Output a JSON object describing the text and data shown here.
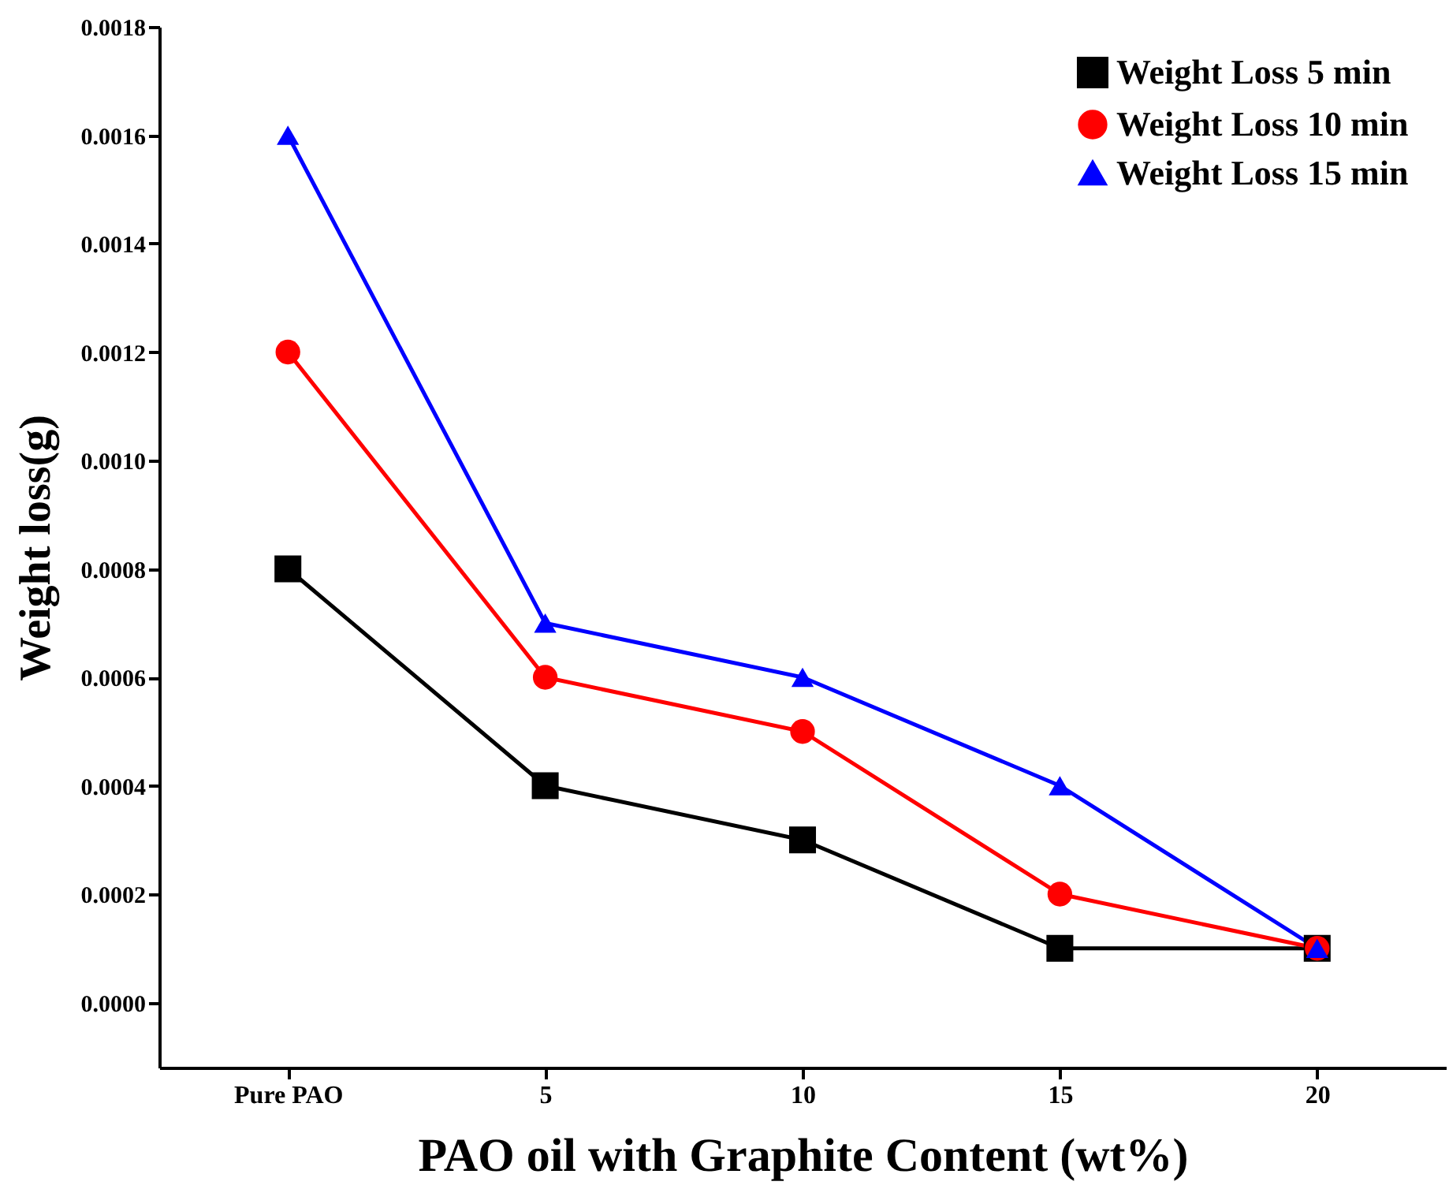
{
  "chart_data": {
    "type": "line",
    "xlabel": "PAO oil with Graphite Content (wt%)",
    "ylabel": "Weight loss(g)",
    "categories": [
      "Pure PAO",
      "5",
      "10",
      "15",
      "20"
    ],
    "series": [
      {
        "name": "Weight Loss  5 min",
        "color": "#000000",
        "marker": "square",
        "values": [
          0.0008,
          0.0004,
          0.0003,
          0.0001,
          0.0001
        ]
      },
      {
        "name": "Weight Loss  10 min",
        "color": "#ff0000",
        "marker": "circle",
        "values": [
          0.0012,
          0.0006,
          0.0005,
          0.0002,
          0.0001
        ]
      },
      {
        "name": "Weight Loss 15 min",
        "color": "#0000ff",
        "marker": "triangle",
        "values": [
          0.0016,
          0.0007,
          0.0006,
          0.0004,
          0.0001
        ]
      }
    ],
    "ylim": [
      -0.00012,
      0.0018
    ],
    "yticks": [
      {
        "value": 0,
        "label": "0.0000"
      },
      {
        "value": 0.0002,
        "label": "0.0002"
      },
      {
        "value": 0.0004,
        "label": "0.0004"
      },
      {
        "value": 0.0006,
        "label": "0.0006"
      },
      {
        "value": 0.0008,
        "label": "0.0008"
      },
      {
        "value": 0.001,
        "label": "0.0010"
      },
      {
        "value": 0.0012,
        "label": "0.0012"
      },
      {
        "value": 0.0014,
        "label": "0.0014"
      },
      {
        "value": 0.0016,
        "label": "0.0016"
      },
      {
        "value": 0.0018,
        "label": "0.0018"
      }
    ],
    "legend": "top right",
    "grid": false,
    "line_style": "solid"
  }
}
